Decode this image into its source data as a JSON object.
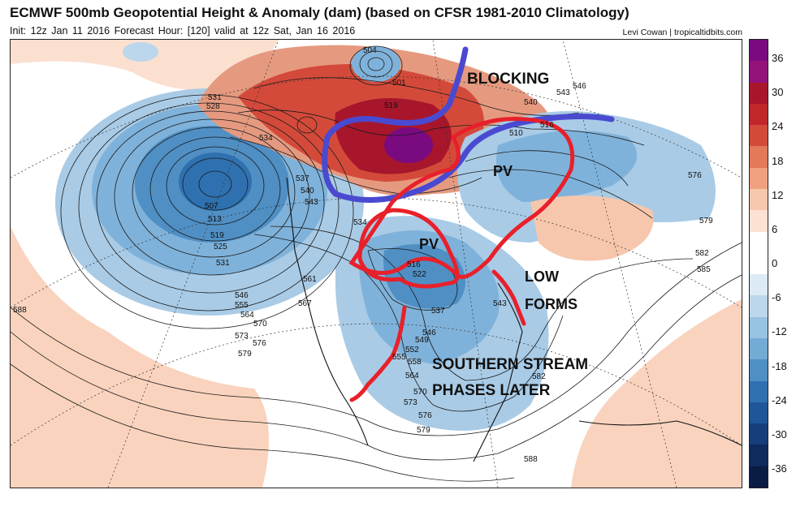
{
  "header": {
    "title": "ECMWF 500mb Geopotential Height & Anomaly (dam) (based on CFSR 1981-2010 Climatology)",
    "init_info": "Init: 12z Jan 11 2016   Forecast Hour: [120]   valid at 12z Sat, Jan 16 2016",
    "credit": "Levi Cowan | tropicaltidbits.com"
  },
  "colorbar": {
    "labels": [
      "36",
      "30",
      "24",
      "18",
      "12",
      "6",
      "0",
      "-6",
      "-12",
      "-18",
      "-24",
      "-30",
      "-36"
    ],
    "colors": [
      "#7a0a80",
      "#93137a",
      "#a8162c",
      "#c1262b",
      "#d44a3a",
      "#e37959",
      "#efa07f",
      "#f6c7ad",
      "#fde2d4",
      "#ffffff",
      "#ffffff",
      "#dceaf5",
      "#bcd6eb",
      "#98c2e1",
      "#74abd5",
      "#4f8fc4",
      "#2f71b0",
      "#1f5698",
      "#163e7a",
      "#0f2a5c",
      "#0a1b44"
    ]
  },
  "annotations": {
    "blocking": "BLOCKING",
    "pv_north": "PV",
    "pv_south": "PV",
    "low_forms": [
      "LOW",
      "FORMS"
    ],
    "southern_stream": [
      "SOUTHERN STREAM",
      "PHASES LATER"
    ]
  },
  "contour_labels": [
    "504",
    "501",
    "531",
    "528",
    "534",
    "537",
    "540",
    "543",
    "519",
    "510",
    "546",
    "516",
    "534",
    "576",
    "579",
    "582",
    "585",
    "588",
    "507",
    "513",
    "519",
    "525",
    "531",
    "546",
    "555",
    "564",
    "570",
    "573",
    "576",
    "579",
    "561",
    "567",
    "516",
    "522",
    "537",
    "543",
    "546",
    "549",
    "552",
    "555",
    "558",
    "564",
    "570",
    "573",
    "576",
    "579",
    "582",
    "588",
    "540",
    "543"
  ],
  "colors": {
    "blocking_outline": "#4a4ad0",
    "pv_outline": "#e8202a",
    "positive_anomaly": "#c1262b",
    "negative_anomaly": "#2f71b0"
  }
}
